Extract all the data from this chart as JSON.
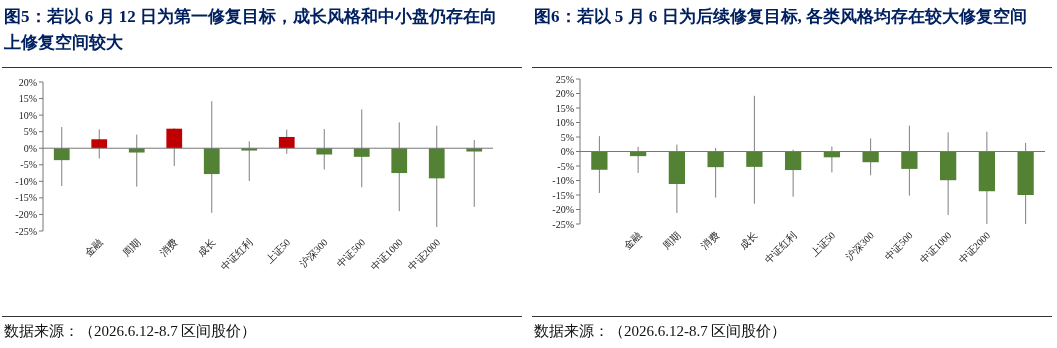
{
  "chart_data": [
    {
      "type": "bar",
      "title": "图5：若以 6 月 12 日为第一修复目标，成长风格和中小盘仍存在向上修复空间较大",
      "categories": [
        null,
        "金融",
        "周期",
        "消费",
        "成长",
        "中证红利",
        "上证50",
        "沪深300",
        "中证500",
        "中证1000",
        "中证2000",
        null
      ],
      "values": [
        -3.6,
        2.7,
        -1.3,
        5.9,
        -7.8,
        -0.7,
        3.4,
        -1.9,
        -2.6,
        -7.5,
        -9.1,
        -1.0
      ],
      "colors": [
        "#548235",
        "#c00000",
        "#548235",
        "#c00000",
        "#548235",
        "#548235",
        "#c00000",
        "#548235",
        "#548235",
        "#548235",
        "#548235",
        "#548235"
      ],
      "errors": [
        [
          -11.4,
          6.4
        ],
        [
          -3.1,
          5.7
        ],
        [
          -11.6,
          4.1
        ],
        [
          -5.4,
          6.0
        ],
        [
          -19.5,
          14.2
        ],
        [
          -9.9,
          2.1
        ],
        [
          -1.7,
          5.6
        ],
        [
          -6.4,
          5.8
        ],
        [
          -11.8,
          11.7
        ],
        [
          -19.0,
          7.8
        ],
        [
          -23.8,
          6.8
        ],
        [
          -17.7,
          2.5
        ]
      ],
      "ylim": [
        -25,
        20
      ],
      "yticks": [
        {
          "value": -25,
          "label": "-25%"
        },
        {
          "value": -20,
          "label": "-20%"
        },
        {
          "value": -15,
          "label": "-15%"
        },
        {
          "value": -10,
          "label": "-10%"
        },
        {
          "value": -5,
          "label": "-5%"
        },
        {
          "value": 0,
          "label": "0%"
        },
        {
          "value": 5,
          "label": "5%"
        },
        {
          "value": 10,
          "label": "10%"
        },
        {
          "value": 15,
          "label": "15%"
        },
        {
          "value": 20,
          "label": "20%"
        }
      ],
      "grid": false,
      "annotations": [
        "数据来源：（2026.6.12-8.7 区间股价）"
      ]
    },
    {
      "type": "bar",
      "title": "图6：若以 5 月 6 日为后续修复目标, 各类风格均存在较大修复空间",
      "categories": [
        null,
        "金融",
        "周期",
        "消费",
        "成长",
        "中证红利",
        "上证50",
        "沪深300",
        "中证500",
        "中证1000",
        "中证2000",
        null
      ],
      "values": [
        -6.3,
        -1.6,
        -11.2,
        -5.4,
        -5.3,
        -6.4,
        -2.0,
        -3.7,
        -6.0,
        -9.9,
        -13.7,
        -15.0
      ],
      "colors": [
        "#548235",
        "#548235",
        "#548235",
        "#548235",
        "#548235",
        "#548235",
        "#548235",
        "#548235",
        "#548235",
        "#548235",
        "#548235",
        "#548235"
      ],
      "errors": [
        [
          -14.3,
          5.3
        ],
        [
          -7.4,
          1.6
        ],
        [
          -21.2,
          2.4
        ],
        [
          -15.9,
          1.2
        ],
        [
          -18.0,
          19.2
        ],
        [
          -15.6,
          0.6
        ],
        [
          -7.2,
          1.7
        ],
        [
          -8.2,
          4.5
        ],
        [
          -15.2,
          8.9
        ],
        [
          -21.9,
          6.6
        ],
        [
          -25,
          6.8
        ],
        [
          -25,
          3.0
        ]
      ],
      "ylim": [
        -25,
        25
      ],
      "yticks": [
        {
          "value": -25,
          "label": "-25%"
        },
        {
          "value": -20,
          "label": "-20%"
        },
        {
          "value": -15,
          "label": "-15%"
        },
        {
          "value": -10,
          "label": "-10%"
        },
        {
          "value": -5,
          "label": "-5%"
        },
        {
          "value": 0,
          "label": "0%"
        },
        {
          "value": 5,
          "label": "5%"
        },
        {
          "value": 10,
          "label": "10%"
        },
        {
          "value": 15,
          "label": "15%"
        },
        {
          "value": 20,
          "label": "20%"
        },
        {
          "value": 25,
          "label": "25%"
        }
      ],
      "grid": false,
      "annotations": [
        "数据来源：（2026.6.12-8.7 区间股价）"
      ]
    }
  ]
}
